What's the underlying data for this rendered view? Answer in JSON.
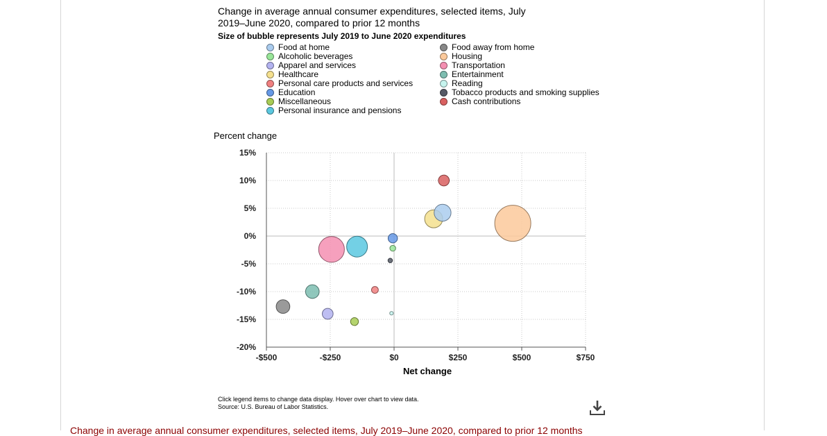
{
  "chart_data": {
    "type": "scatter",
    "title": "Change in average annual consumer expenditures, selected items, July 2019–June 2020, compared to prior 12 months",
    "subtitle": "Size of bubble represents July 2019 to June 2020 expenditures",
    "xlabel": "Net change",
    "ylabel": "Percent change",
    "xlim": [
      -500,
      750
    ],
    "ylim": [
      -20,
      15
    ],
    "x_ticks": [
      "-$500",
      "-$250",
      "$0",
      "$250",
      "$500",
      "$750"
    ],
    "y_ticks": [
      "15%",
      "10%",
      "5%",
      "0%",
      "-5%",
      "-10%",
      "-15%",
      "-20%"
    ],
    "grid": true,
    "legend_position": "top",
    "series": [
      {
        "name": "Food at home",
        "x": 190,
        "y": 4.2,
        "size": 4600,
        "color": "#aaccee"
      },
      {
        "name": "Alcoholic beverages",
        "x": -5,
        "y": -2.2,
        "size": 550,
        "color": "#99e699"
      },
      {
        "name": "Apparel and services",
        "x": -260,
        "y": -14.0,
        "size": 1900,
        "color": "#b3b3f0"
      },
      {
        "name": "Healthcare",
        "x": 155,
        "y": 3.1,
        "size": 5200,
        "color": "#f5e08e"
      },
      {
        "name": "Personal care products and services",
        "x": -75,
        "y": -9.7,
        "size": 750,
        "color": "#f08080"
      },
      {
        "name": "Education",
        "x": -5,
        "y": -0.4,
        "size": 1400,
        "color": "#6699e6"
      },
      {
        "name": "Miscellaneous",
        "x": -155,
        "y": -15.4,
        "size": 1000,
        "color": "#a8cc55"
      },
      {
        "name": "Personal insurance and pensions",
        "x": -145,
        "y": -1.9,
        "size": 7000,
        "color": "#5bc8e0"
      },
      {
        "name": "Food away from home",
        "x": -435,
        "y": -12.7,
        "size": 3000,
        "color": "#888888"
      },
      {
        "name": "Housing",
        "x": 465,
        "y": 2.3,
        "size": 21000,
        "color": "#fbc99b"
      },
      {
        "name": "Transportation",
        "x": -245,
        "y": -2.4,
        "size": 10700,
        "color": "#f48fb1"
      },
      {
        "name": "Entertainment",
        "x": -320,
        "y": -10.0,
        "size": 3000,
        "color": "#7dbdb0"
      },
      {
        "name": "Reading",
        "x": -10,
        "y": -13.9,
        "size": 110,
        "color": "#c6f4ee"
      },
      {
        "name": "Tobacco products and smoking supplies",
        "x": -15,
        "y": -4.4,
        "size": 320,
        "color": "#555a66"
      },
      {
        "name": "Cash contributions",
        "x": 195,
        "y": 10.0,
        "size": 1900,
        "color": "#d96060"
      }
    ]
  },
  "legend_left": [
    "Food at home",
    "Alcoholic beverages",
    "Apparel and services",
    "Healthcare",
    "Personal care products and services",
    "Education",
    "Miscellaneous",
    "Personal insurance and pensions"
  ],
  "legend_right": [
    "Food away from home",
    "Housing",
    "Transportation",
    "Entertainment",
    "Reading",
    "Tobacco products and smoking supplies",
    "Cash contributions"
  ],
  "notes": {
    "instruction": "Click legend items to change data display. Hover over chart to view data.",
    "source": "Source: U.S. Bureau of Labor Statistics."
  },
  "download_icon": "download-icon",
  "bottom_heading": "Change in average annual consumer expenditures, selected items, July 2019–June 2020, compared to prior 12 months"
}
